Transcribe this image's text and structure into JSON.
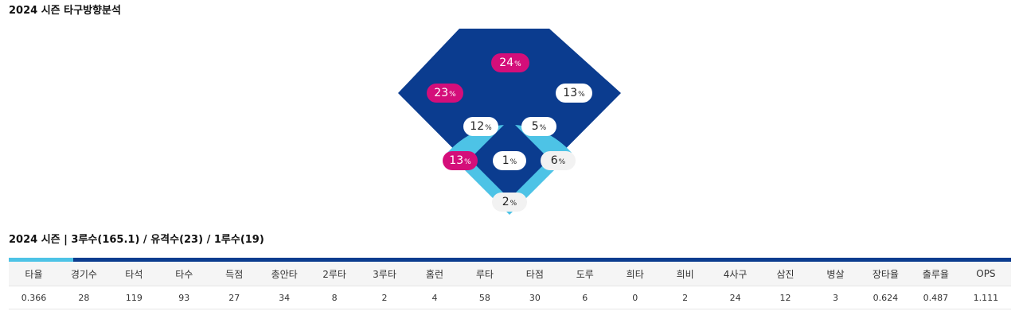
{
  "spray_chart": {
    "title": "2024 시즌 타구방향분석",
    "unit": "%",
    "colors": {
      "deep": "#0b3c8f",
      "infield": "#4dc3e6",
      "highlight": "#d40e7a"
    },
    "zones": [
      {
        "name": "center-deep",
        "value": "24",
        "style": "pink"
      },
      {
        "name": "left-deep",
        "value": "23",
        "style": "pink"
      },
      {
        "name": "right-deep",
        "value": "13",
        "style": "white"
      },
      {
        "name": "left-center-shallow",
        "value": "12",
        "style": "white"
      },
      {
        "name": "right-center-shallow",
        "value": "5",
        "style": "white"
      },
      {
        "name": "third-base-line",
        "value": "13",
        "style": "pink"
      },
      {
        "name": "pitcher",
        "value": "1",
        "style": "white"
      },
      {
        "name": "first-base-line",
        "value": "6",
        "style": "light"
      },
      {
        "name": "catcher",
        "value": "2",
        "style": "light"
      }
    ]
  },
  "stats": {
    "title": "2024 시즌 | 3루수(165.1) / 유격수(23) / 1루수(19)",
    "headers": [
      "타율",
      "경기수",
      "타석",
      "타수",
      "득점",
      "총안타",
      "2루타",
      "3루타",
      "홈런",
      "루타",
      "타점",
      "도루",
      "희타",
      "희비",
      "4사구",
      "삼진",
      "병살",
      "장타율",
      "출루율",
      "OPS"
    ],
    "values": [
      "0.366",
      "28",
      "119",
      "93",
      "27",
      "34",
      "8",
      "2",
      "4",
      "58",
      "30",
      "6",
      "0",
      "2",
      "24",
      "12",
      "3",
      "0.624",
      "0.487",
      "1.111"
    ]
  }
}
